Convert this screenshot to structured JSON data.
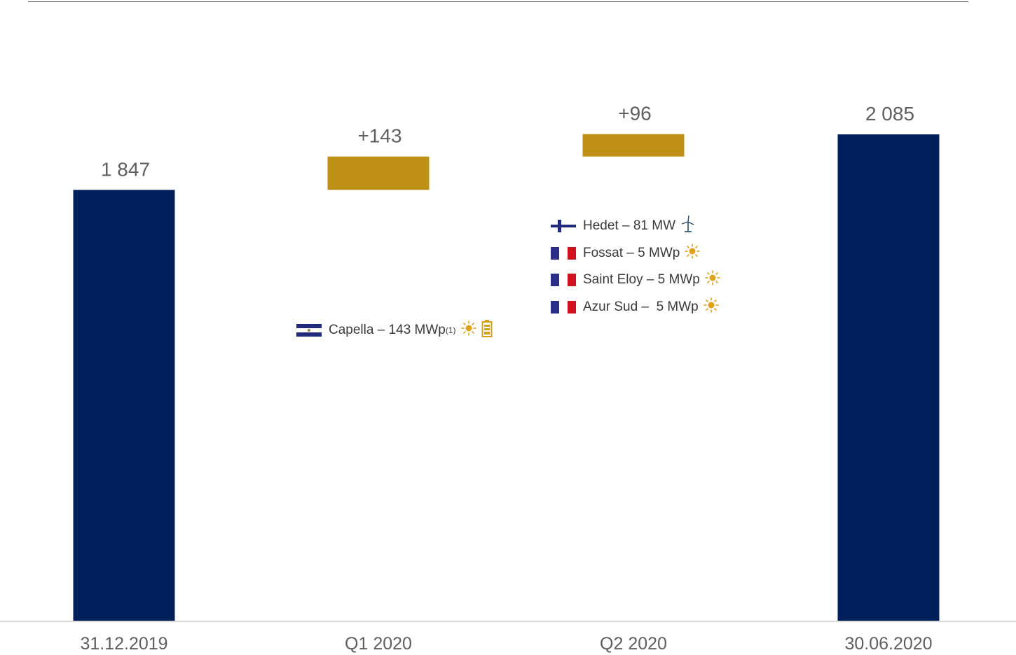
{
  "colors": {
    "base_bar": "#00205b",
    "delta_bar": "#be9116",
    "value_label": "#5f5f5f",
    "axis_label": "#5f5f5f",
    "baseline": "#d9d9d9"
  },
  "chart_data": {
    "type": "bar",
    "subtype": "waterfall",
    "categories": [
      "31.12.2019",
      "Q1 2020",
      "Q2 2020",
      "30.06.2020"
    ],
    "values": [
      1847,
      143,
      96,
      2085
    ],
    "value_labels": [
      "1 847",
      "+143",
      "+96",
      "2 085"
    ],
    "bar_kinds": [
      "total",
      "increase",
      "increase",
      "total"
    ],
    "title": "",
    "xlabel": "",
    "ylabel": "",
    "ylim": [
      0,
      2150
    ],
    "grid": false,
    "legend": "none",
    "annotations": [
      {
        "category": "Q1 2020",
        "items": [
          {
            "flag": "el-salvador-flag",
            "name": "Capella",
            "sep": " – ",
            "capacity": "143 MWp",
            "note": "(1)",
            "icons": [
              "sun-icon",
              "battery-icon"
            ]
          }
        ]
      },
      {
        "category": "Q2 2020",
        "items": [
          {
            "flag": "finland-flag",
            "name": "Hedet",
            "sep": " – ",
            "capacity": "81 MW",
            "icons": [
              "wind-turbine-icon"
            ]
          },
          {
            "flag": "france-flag",
            "name": "Fossat",
            "sep": " – ",
            "capacity": "5 MWp",
            "icons": [
              "sun-icon"
            ]
          },
          {
            "flag": "france-flag",
            "name": "Saint Eloy",
            "sep": " – ",
            "capacity": "5 MWp",
            "icons": [
              "sun-icon"
            ]
          },
          {
            "flag": "france-flag",
            "name": "Azur Sud",
            "sep": " –  ",
            "capacity": "5 MWp",
            "icons": [
              "sun-icon"
            ]
          }
        ]
      }
    ]
  }
}
